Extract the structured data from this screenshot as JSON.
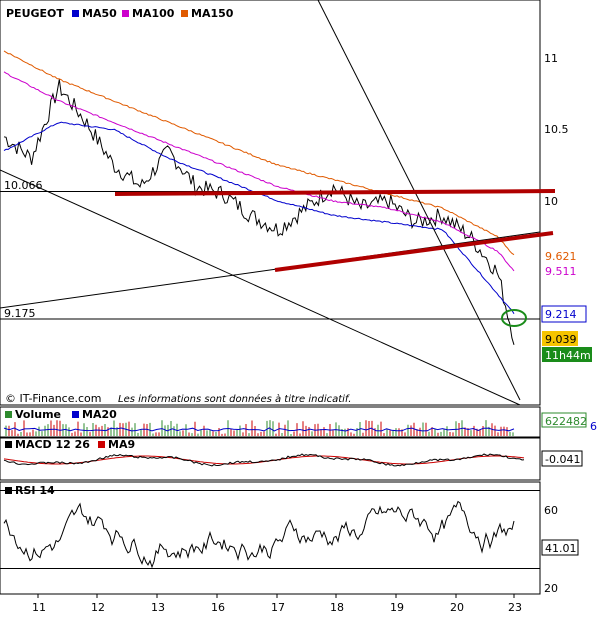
{
  "title": "PEUGEOT",
  "copyright": "© IT-Finance.com",
  "disclaimer": "Les informations sont données à titre indicatif.",
  "colors": {
    "ma50": "#0000cc",
    "ma100": "#cc00cc",
    "ma150": "#e05a00",
    "price": "#000000",
    "trend": "#b00000",
    "volume_up": "#2e8b2e",
    "volume_down": "#cc0000"
  },
  "chart_data": [
    {
      "type": "line",
      "name": "price",
      "legend": [
        "PEUGEOT",
        "MA50",
        "MA100",
        "MA150"
      ],
      "x_ticks": [
        "11",
        "12",
        "13",
        "16",
        "17",
        "18",
        "19",
        "20",
        "23"
      ],
      "y_ticks": [
        11,
        10.5,
        10
      ],
      "ylim": [
        8.6,
        11.3
      ],
      "reference_lines": [
        {
          "label": "10.066",
          "value": 10.066
        },
        {
          "label": "9.175",
          "value": 9.175
        }
      ],
      "value_labels": [
        {
          "text": "9.621",
          "series": "MA150",
          "value": 9.621
        },
        {
          "text": "9.511",
          "series": "MA100",
          "value": 9.511
        },
        {
          "text": "9.214",
          "series": "MA50",
          "value": 9.214
        },
        {
          "text": "9.039",
          "series": "PEUGEOT",
          "value": 9.039
        },
        {
          "text": "11h44m",
          "series": "time"
        }
      ],
      "series": [
        {
          "name": "PEUGEOT",
          "x": [
            0,
            0.5,
            1,
            1.5,
            2,
            2.5,
            3,
            3.5,
            4,
            4.5,
            5,
            5.5,
            6,
            6.5,
            7,
            7.5,
            8,
            8.5,
            9,
            9.3
          ],
          "values": [
            10.45,
            10.3,
            10.8,
            10.55,
            10.25,
            10.1,
            10.35,
            10.1,
            10.05,
            9.9,
            9.8,
            9.95,
            10.1,
            9.95,
            10.0,
            9.85,
            9.9,
            9.75,
            9.5,
            9.039
          ]
        },
        {
          "name": "MA50",
          "x": [
            0,
            1,
            2,
            3,
            4,
            5,
            6,
            7,
            8,
            9,
            9.3
          ],
          "values": [
            10.35,
            10.55,
            10.5,
            10.3,
            10.15,
            10.0,
            9.9,
            9.85,
            9.8,
            9.35,
            9.214
          ]
        },
        {
          "name": "MA100",
          "x": [
            0,
            1,
            2,
            3,
            4,
            5,
            6,
            7,
            8,
            9,
            9.3
          ],
          "values": [
            10.9,
            10.7,
            10.55,
            10.4,
            10.25,
            10.1,
            10.0,
            9.95,
            9.85,
            9.65,
            9.511
          ]
        },
        {
          "name": "MA150",
          "x": [
            0,
            1,
            2,
            3,
            4,
            5,
            6,
            7,
            8,
            9,
            9.3
          ],
          "values": [
            11.05,
            10.85,
            10.7,
            10.55,
            10.4,
            10.25,
            10.15,
            10.05,
            9.95,
            9.75,
            9.621
          ]
        }
      ]
    },
    {
      "type": "bar",
      "name": "volume",
      "legend": [
        "Volume",
        "MA20"
      ],
      "value_label": "622482",
      "side_label": "6"
    },
    {
      "type": "line",
      "name": "macd",
      "legend": [
        "MACD 12 26",
        "MA9"
      ],
      "value_label": "-0.041"
    },
    {
      "type": "line",
      "name": "rsi",
      "legend": [
        "RSI 14"
      ],
      "y_ticks": [
        60,
        20
      ],
      "ylim": [
        15,
        75
      ],
      "reference_lines": [
        70,
        30
      ],
      "value_label": "41.01"
    }
  ]
}
